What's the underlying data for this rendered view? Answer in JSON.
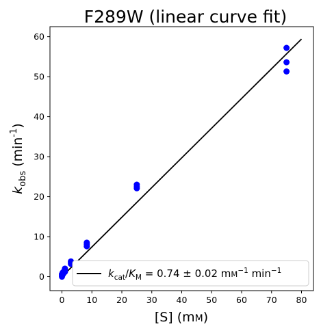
{
  "chart_data": {
    "type": "scatter",
    "title": "F289W (linear curve fit)",
    "xlabel": "[S] (mM)",
    "ylabel": "k_obs (min^-1)",
    "xlim": [
      -4,
      84
    ],
    "ylim": [
      -3.5,
      62.5
    ],
    "xticks": [
      0,
      10,
      20,
      30,
      40,
      50,
      60,
      70,
      80
    ],
    "yticks": [
      0,
      10,
      20,
      30,
      40,
      50,
      60
    ],
    "grid": false,
    "legend_position": "lower-right",
    "series": [
      {
        "kind": "points",
        "color": "#0000ff",
        "points": [
          {
            "x": 0,
            "y": 0.0
          },
          {
            "x": 0,
            "y": 0.3
          },
          {
            "x": 0,
            "y": 0.6
          },
          {
            "x": 0.25,
            "y": 0.5
          },
          {
            "x": 0.25,
            "y": 1.0
          },
          {
            "x": 0.5,
            "y": 0.8
          },
          {
            "x": 0.5,
            "y": 1.2
          },
          {
            "x": 1,
            "y": 1.2
          },
          {
            "x": 1,
            "y": 1.6
          },
          {
            "x": 1,
            "y": 2.0
          },
          {
            "x": 3,
            "y": 3.2
          },
          {
            "x": 3,
            "y": 3.5
          },
          {
            "x": 3,
            "y": 3.8
          },
          {
            "x": 8.3,
            "y": 7.6
          },
          {
            "x": 8.3,
            "y": 8.1
          },
          {
            "x": 8.3,
            "y": 8.5
          },
          {
            "x": 25,
            "y": 22.1
          },
          {
            "x": 25,
            "y": 22.5
          },
          {
            "x": 25,
            "y": 23.0
          },
          {
            "x": 75,
            "y": 51.3
          },
          {
            "x": 75,
            "y": 53.6
          },
          {
            "x": 75,
            "y": 57.2
          }
        ]
      },
      {
        "kind": "fit-line",
        "color": "#000000",
        "x": [
          0,
          80
        ],
        "y": [
          0,
          59.4
        ]
      }
    ],
    "legend": {
      "k": "k",
      "k_sub": "cat",
      "K": "K",
      "K_sub": "M",
      "middle": " = 0.74 ± 0.02 mM",
      "sup1": "−1",
      "unit": " min",
      "sup2": "−1"
    }
  }
}
